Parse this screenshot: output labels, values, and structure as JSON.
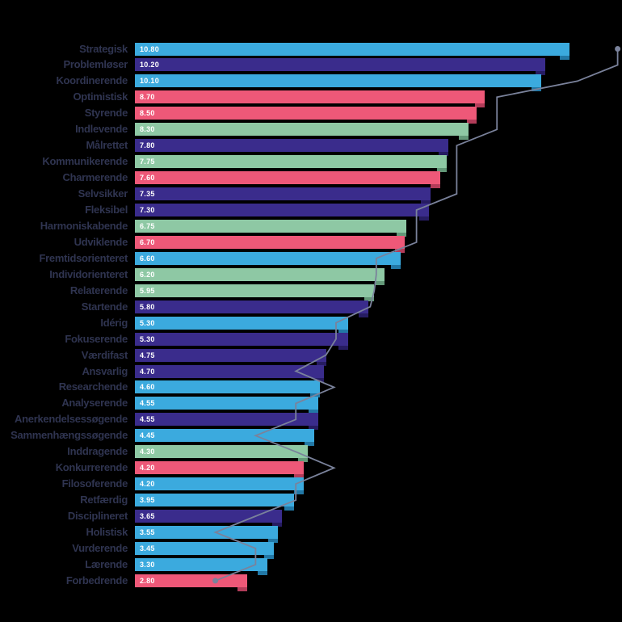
{
  "chart_data": {
    "type": "bar",
    "orientation": "horizontal",
    "title": "",
    "xlabel": "",
    "ylabel": "",
    "xlim": [
      0,
      12.1
    ],
    "grid": false,
    "legend": null,
    "categories": [
      "Strategisk",
      "Problemløser",
      "Koordinerende",
      "Optimistisk",
      "Styrende",
      "Indlevende",
      "Målrettet",
      "Kommunikerende",
      "Charmerende",
      "Selvsikker",
      "Fleksibel",
      "Harmoniskabende",
      "Udviklende",
      "Fremtidsorienteret",
      "Individorienteret",
      "Relaterende",
      "Startende",
      "Idérig",
      "Fokuserende",
      "Værdifast",
      "Ansvarlig",
      "Researchende",
      "Analyserende",
      "Anerkendelsessøgende",
      "Sammenhængssøgende",
      "Inddragende",
      "Konkurrerende",
      "Filosoferende",
      "Retfærdig",
      "Disciplineret",
      "Holistisk",
      "Vurderende",
      "Lærende",
      "Forbedrende"
    ],
    "series": [
      {
        "name": "score-bars",
        "type": "bar",
        "values": [
          10.8,
          10.2,
          10.1,
          8.7,
          8.5,
          8.3,
          7.8,
          7.75,
          7.6,
          7.35,
          7.3,
          6.75,
          6.7,
          6.6,
          6.2,
          5.95,
          5.8,
          5.3,
          5.3,
          4.75,
          4.7,
          4.6,
          4.55,
          4.55,
          4.45,
          4.3,
          4.2,
          4.2,
          3.95,
          3.65,
          3.55,
          3.45,
          3.3,
          2.8
        ],
        "value_labels": [
          "10.80",
          "10.20",
          "10.10",
          "8.70",
          "8.50",
          "8.30",
          "7.80",
          "7.75",
          "7.60",
          "7.35",
          "7.30",
          "6.75",
          "6.70",
          "6.60",
          "6.20",
          "5.95",
          "5.80",
          "5.30",
          "5.30",
          "4.75",
          "4.70",
          "4.60",
          "4.55",
          "4.55",
          "4.45",
          "4.30",
          "4.20",
          "4.20",
          "3.95",
          "3.65",
          "3.55",
          "3.45",
          "3.30",
          "2.80"
        ],
        "color_keys": [
          "blue",
          "purple",
          "blue",
          "pink",
          "pink",
          "green",
          "purple",
          "green",
          "pink",
          "purple",
          "purple",
          "green",
          "pink",
          "blue",
          "green",
          "green",
          "purple",
          "blue",
          "purple",
          "purple",
          "purple",
          "blue",
          "blue",
          "purple",
          "blue",
          "green",
          "pink",
          "blue",
          "blue",
          "purple",
          "blue",
          "blue",
          "blue",
          "pink"
        ]
      },
      {
        "name": "norm-line",
        "type": "line",
        "values": [
          12.0,
          12.0,
          11.0,
          9.0,
          9.0,
          9.0,
          8.0,
          8.0,
          8.0,
          8.0,
          7.0,
          7.0,
          7.0,
          6.0,
          6.0,
          5.95,
          5.85,
          5.0,
          5.0,
          4.75,
          4.0,
          4.95,
          4.0,
          4.0,
          3.0,
          4.0,
          4.95,
          4.0,
          4.0,
          3.0,
          2.0,
          3.0,
          3.0,
          2.0
        ],
        "markers": "endpoints-only"
      }
    ],
    "colors": {
      "blue": "#3BAADE",
      "purple": "#3A2C8C",
      "pink": "#EE5878",
      "green": "#8EC8A4",
      "blue_shade": "#2278A6",
      "purple_shade": "#261C62",
      "pink_shade": "#B23C59",
      "green_shade": "#639878",
      "line": "#7A829B",
      "label_text": "#2F3450",
      "value_text": "#FFFFFF",
      "background": "#000000"
    }
  }
}
